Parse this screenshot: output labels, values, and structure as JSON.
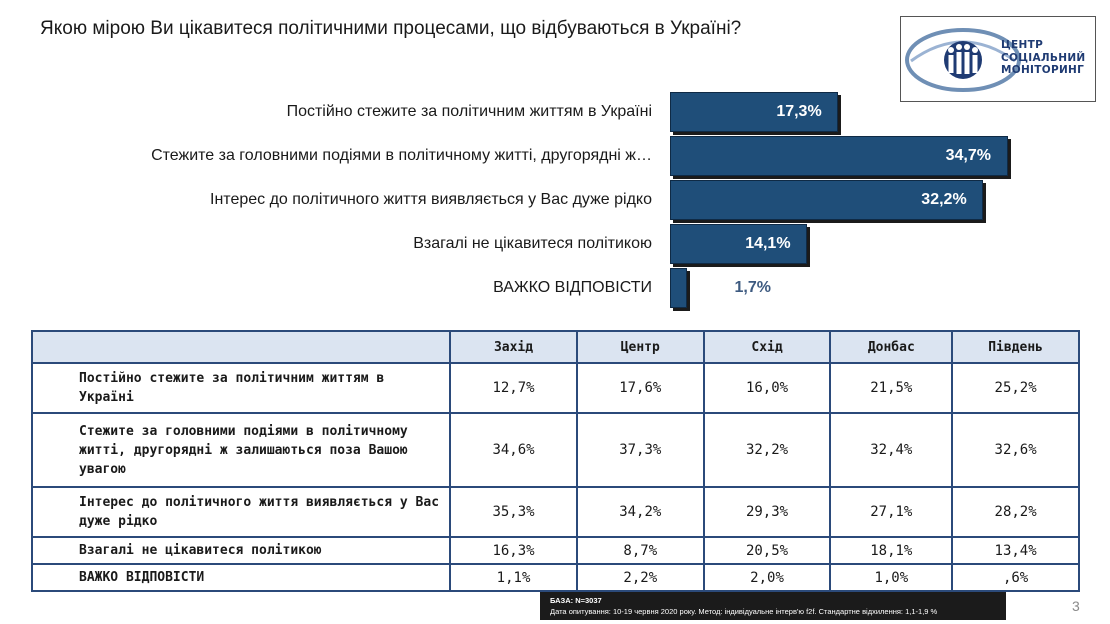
{
  "title": "Якою мірою Ви цікавитеся політичними процесами, що відбуваються в Україні?",
  "logo": {
    "lines": [
      "ЦЕНТР",
      "СОЦІАЛЬНИЙ",
      "МОНІТОРИНГ"
    ],
    "colors": {
      "primary": "#1f3b73",
      "ring": "#6f8fb5"
    }
  },
  "chart_data": {
    "type": "bar",
    "orientation": "horizontal",
    "categories": [
      "Постійно стежите за політичним життям в Україні",
      "Стежите за головними подіями в політичному житті, другорядні ж…",
      "Інтерес до  політичного життя виявляється у Вас дуже рідко",
      "Взагалі не цікавитеся політикою",
      "ВАЖКО ВІДПОВІСТИ"
    ],
    "values": [
      17.3,
      34.7,
      32.2,
      14.1,
      1.7
    ],
    "value_labels": [
      "17,3%",
      "34,7%",
      "32,2%",
      "14,1%",
      "1,7%"
    ],
    "xlim": [
      0,
      37
    ],
    "bar_color": "#1f4e79"
  },
  "table": {
    "headers": [
      "",
      "Захід",
      "Центр",
      "Схід",
      "Донбас",
      "Південь"
    ],
    "rows": [
      {
        "label": "Постійно стежите за політичним життям в Україні",
        "values": [
          "12,7%",
          "17,6%",
          "16,0%",
          "21,5%",
          "25,2%"
        ]
      },
      {
        "label": "Стежите за головними подіями в політичному житті, другорядні ж залишаються поза Вашою увагою",
        "values": [
          "34,6%",
          "37,3%",
          "32,2%",
          "32,4%",
          "32,6%"
        ]
      },
      {
        "label": "Інтерес до  політичного життя виявляється у Вас дуже рідко",
        "values": [
          "35,3%",
          "34,2%",
          "29,3%",
          "27,1%",
          "28,2%"
        ]
      },
      {
        "label": "Взагалі не цікавитеся політикою",
        "values": [
          "16,3%",
          "8,7%",
          "20,5%",
          "18,1%",
          "13,4%"
        ]
      },
      {
        "label": "ВАЖКО ВІДПОВІСТИ",
        "values": [
          "1,1%",
          "2,2%",
          "2,0%",
          "1,0%",
          ",6%"
        ]
      }
    ]
  },
  "footer": {
    "base": "БАЗА: N=3037",
    "details": "Дата опитування: 10-19 червня 2020 року. Метод: індивідуальне інтерв'ю f2f. Стандартне відхилення: 1,1-1,9 %"
  },
  "page_number": "3"
}
